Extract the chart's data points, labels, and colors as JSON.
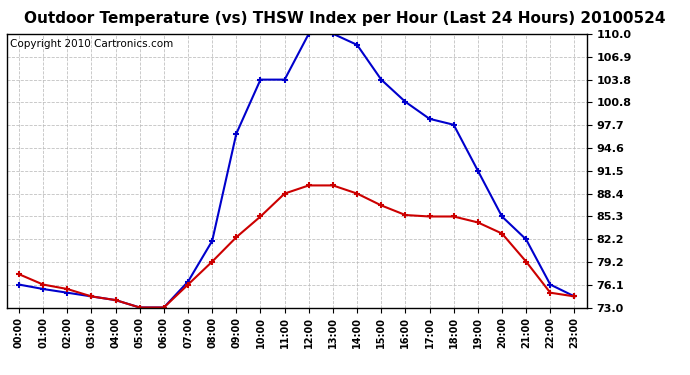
{
  "title": "Outdoor Temperature (vs) THSW Index per Hour (Last 24 Hours) 20100524",
  "copyright": "Copyright 2010 Cartronics.com",
  "hours": [
    "00:00",
    "01:00",
    "02:00",
    "03:00",
    "04:00",
    "05:00",
    "06:00",
    "07:00",
    "08:00",
    "09:00",
    "10:00",
    "11:00",
    "12:00",
    "13:00",
    "14:00",
    "15:00",
    "16:00",
    "17:00",
    "18:00",
    "19:00",
    "20:00",
    "21:00",
    "22:00",
    "23:00"
  ],
  "temp": [
    77.5,
    76.1,
    75.5,
    74.5,
    74.0,
    73.0,
    73.0,
    76.1,
    79.2,
    82.5,
    85.3,
    88.4,
    89.5,
    89.5,
    88.4,
    86.8,
    85.5,
    85.3,
    85.3,
    84.5,
    83.0,
    79.2,
    75.0,
    74.5
  ],
  "thsw": [
    76.1,
    75.5,
    75.0,
    74.5,
    74.0,
    73.0,
    73.0,
    76.5,
    82.0,
    96.5,
    103.8,
    103.8,
    110.0,
    110.0,
    108.5,
    103.8,
    100.8,
    98.5,
    97.7,
    91.5,
    85.3,
    82.2,
    76.1,
    74.5
  ],
  "ylim": [
    73.0,
    110.0
  ],
  "yticks": [
    73.0,
    76.1,
    79.2,
    82.2,
    85.3,
    88.4,
    91.5,
    94.6,
    97.7,
    100.8,
    103.8,
    106.9,
    110.0
  ],
  "ytick_labels": [
    "73.0",
    "76.1",
    "79.2",
    "82.2",
    "85.3",
    "88.4",
    "91.5",
    "94.6",
    "97.7",
    "100.8",
    "103.8",
    "106.9",
    "110.0"
  ],
  "temp_color": "#cc0000",
  "thsw_color": "#0000cc",
  "bg_color": "#ffffff",
  "grid_color": "#bbbbbb",
  "title_fontsize": 11,
  "copyright_fontsize": 7.5,
  "tick_fontsize": 8
}
